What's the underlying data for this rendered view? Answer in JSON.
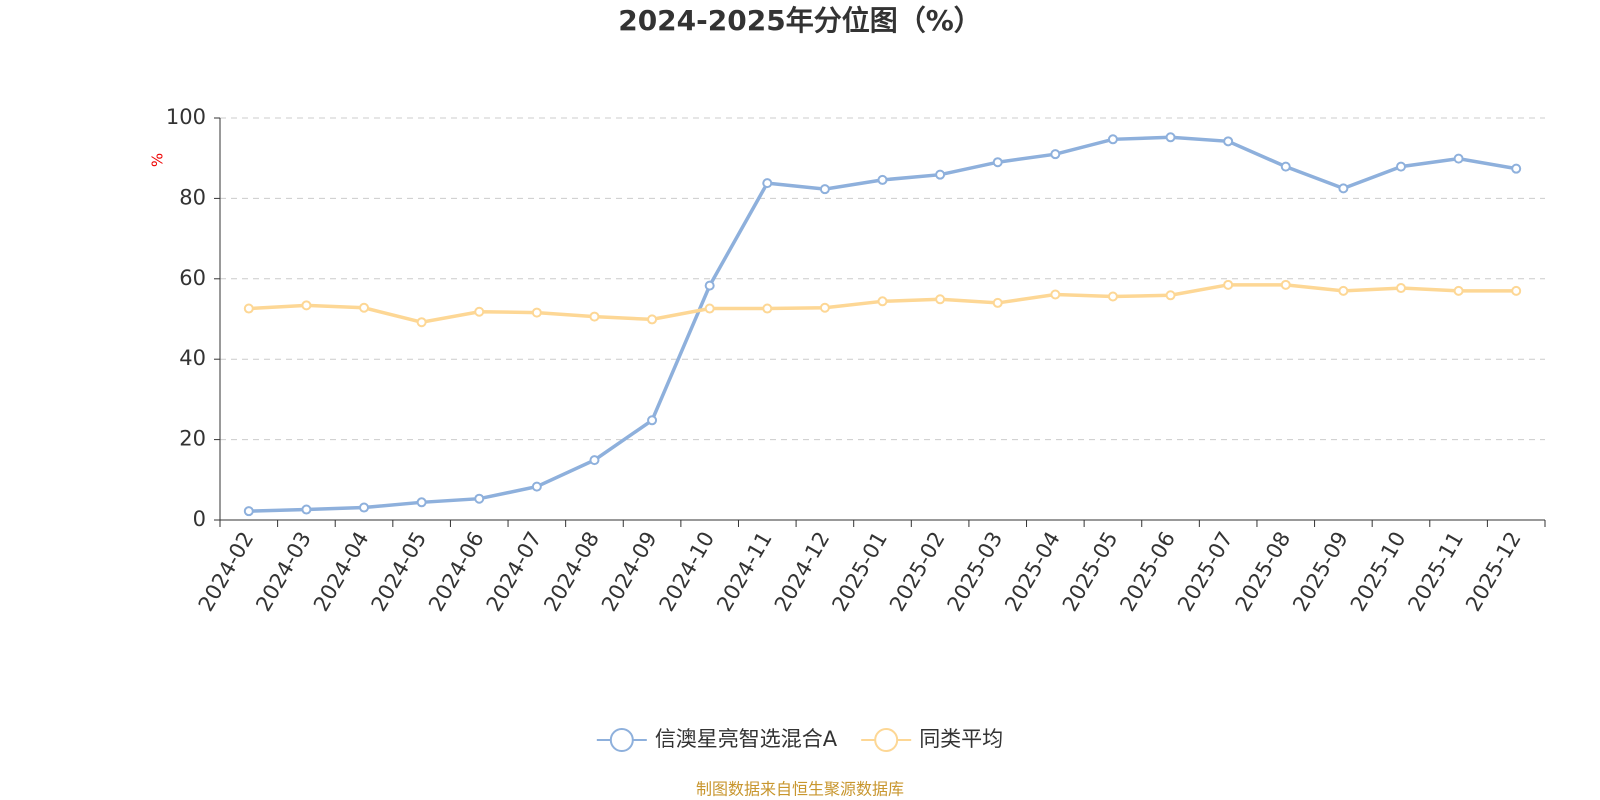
{
  "chart_data": {
    "type": "line",
    "title": "2024-2025年分位图（%）",
    "y_label": "%",
    "categories": [
      "2024-02",
      "2024-03",
      "2024-04",
      "2024-05",
      "2024-06",
      "2024-07",
      "2024-08",
      "2024-09",
      "2024-10",
      "2024-11",
      "2024-12",
      "2025-01",
      "2025-02",
      "2025-03",
      "2025-04",
      "2025-05",
      "2025-06",
      "2025-07",
      "2025-08",
      "2025-09",
      "2025-10",
      "2025-11",
      "2025-12"
    ],
    "series": [
      {
        "name": "信澳星亮智选混合A",
        "color": "#8eb0dc",
        "values": [
          2.2,
          2.6,
          3.1,
          4.4,
          5.3,
          8.3,
          14.9,
          24.8,
          58.3,
          83.8,
          82.3,
          84.6,
          85.9,
          89.0,
          91.0,
          94.7,
          95.2,
          94.2,
          87.9,
          82.5,
          87.9,
          89.9,
          87.4
        ]
      },
      {
        "name": "同类平均",
        "color": "#fdd795",
        "values": [
          52.6,
          53.4,
          52.8,
          49.2,
          51.8,
          51.6,
          50.6,
          49.9,
          52.6,
          52.6,
          52.8,
          54.4,
          54.9,
          54.0,
          56.1,
          55.6,
          55.9,
          58.5,
          58.5,
          57.0,
          57.7,
          57.0,
          57.0
        ]
      }
    ],
    "ylim": [
      0,
      100
    ],
    "yticks": [
      0,
      20,
      40,
      60,
      80,
      100
    ],
    "grid": true,
    "legend": "bottom",
    "source": "制图数据来自恒生聚源数据库"
  }
}
